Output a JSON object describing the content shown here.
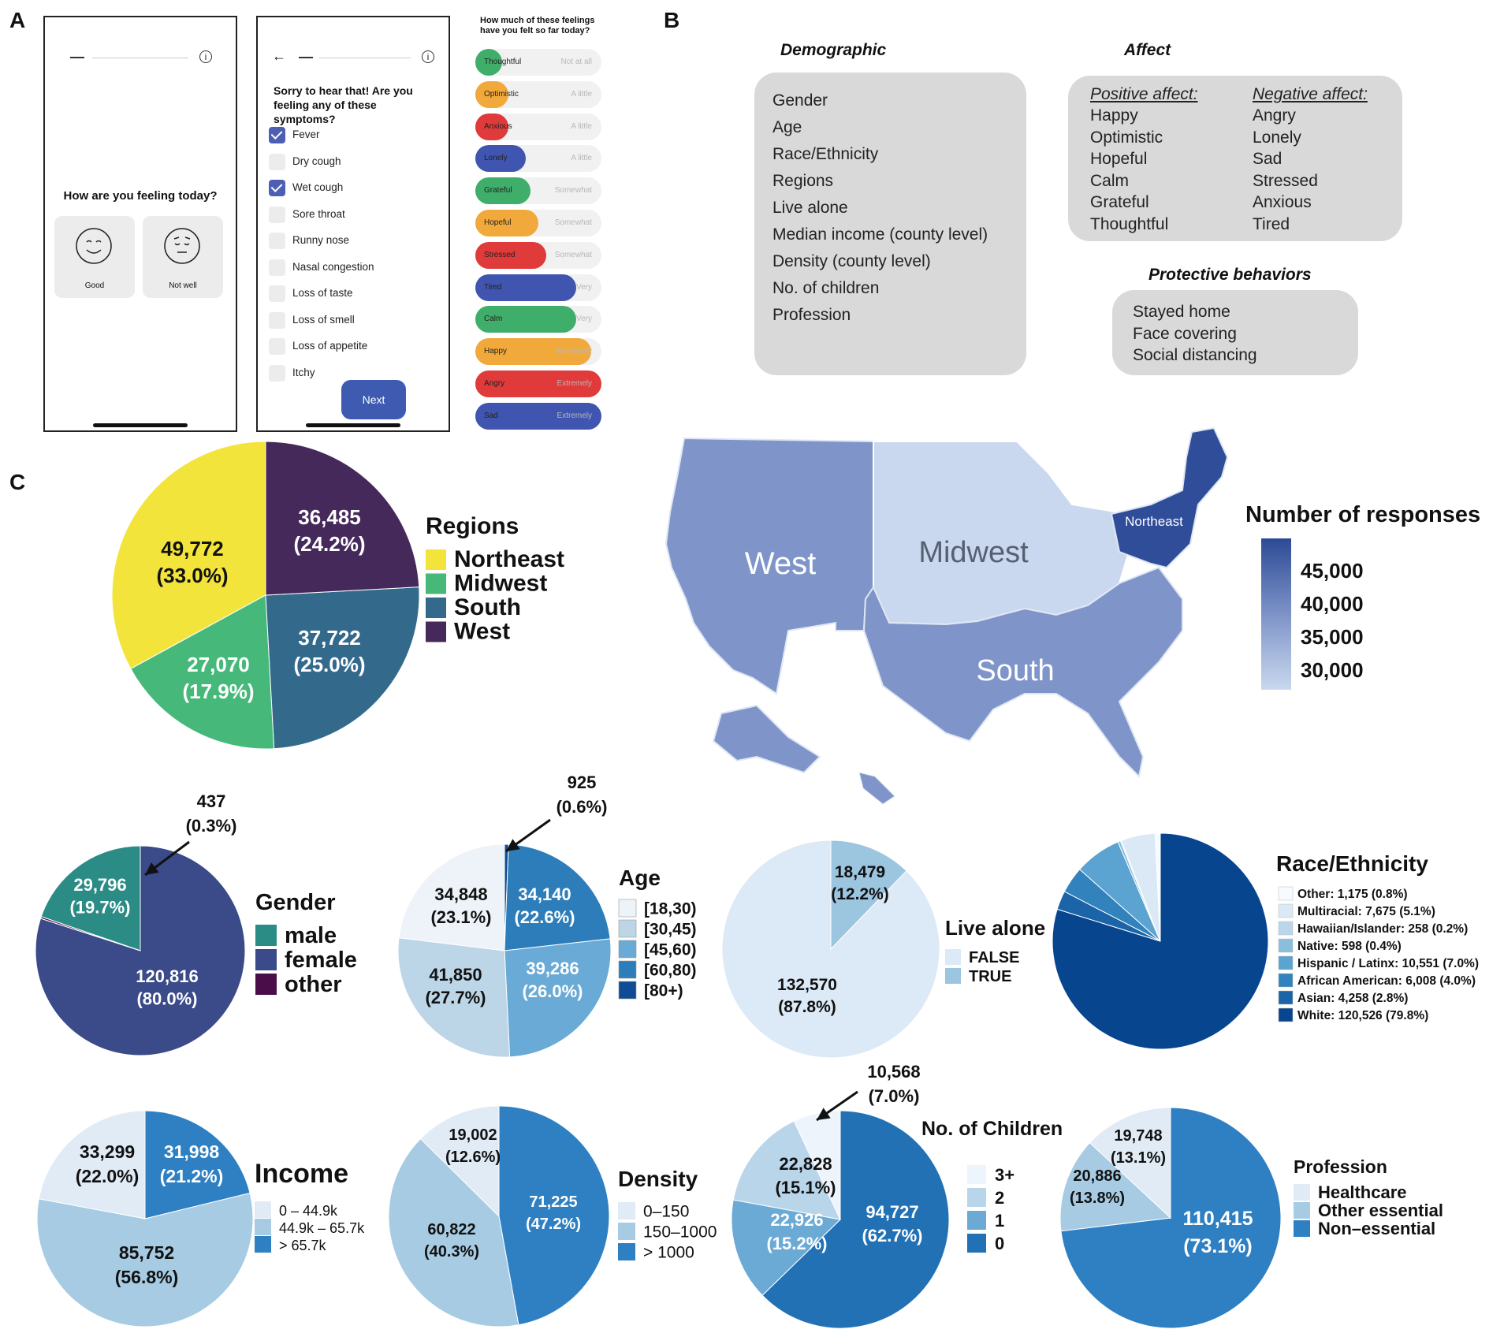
{
  "panels": {
    "a": "A",
    "b": "B",
    "c": "C"
  },
  "app": {
    "screen1": {
      "question": "How are you feeling today?",
      "good_label": "Good",
      "notwell_label": "Not well"
    },
    "screen2": {
      "question": "Sorry to hear that! Are you feeling any of these symptoms?",
      "symptoms": [
        {
          "label": "Fever",
          "checked": true
        },
        {
          "label": "Dry cough",
          "checked": false
        },
        {
          "label": "Wet cough",
          "checked": true
        },
        {
          "label": "Sore throat",
          "checked": false
        },
        {
          "label": "Runny nose",
          "checked": false
        },
        {
          "label": "Nasal congestion",
          "checked": false
        },
        {
          "label": "Loss of taste",
          "checked": false
        },
        {
          "label": "Loss of smell",
          "checked": false
        },
        {
          "label": "Loss of appetite",
          "checked": false
        },
        {
          "label": "Itchy",
          "checked": false
        }
      ],
      "next_label": "Next"
    },
    "screen3": {
      "question": "How much of these feelings have you felt so far today?",
      "feelings": [
        {
          "name": "Thoughtful",
          "level": "Not at all",
          "fill": 0.2,
          "color": "#3fae6a"
        },
        {
          "name": "Optimistic",
          "level": "A little",
          "fill": 0.26,
          "color": "#f2a93b"
        },
        {
          "name": "Anxious",
          "level": "A little",
          "fill": 0.26,
          "color": "#e03a3a"
        },
        {
          "name": "Lonely",
          "level": "A little",
          "fill": 0.4,
          "color": "#3f55b0"
        },
        {
          "name": "Grateful",
          "level": "Somewhat",
          "fill": 0.44,
          "color": "#3fae6a"
        },
        {
          "name": "Hopeful",
          "level": "Somewhat",
          "fill": 0.5,
          "color": "#f2a93b"
        },
        {
          "name": "Stressed",
          "level": "Somewhat",
          "fill": 0.56,
          "color": "#e03a3a"
        },
        {
          "name": "Tired",
          "level": "Very",
          "fill": 0.8,
          "color": "#3f55b0"
        },
        {
          "name": "Calm",
          "level": "Very",
          "fill": 0.8,
          "color": "#3fae6a"
        },
        {
          "name": "Happy",
          "level": "Extremely",
          "fill": 0.92,
          "color": "#f2a93b"
        },
        {
          "name": "Angry",
          "level": "Extremely",
          "fill": 1.0,
          "color": "#e03a3a"
        },
        {
          "name": "Sad",
          "level": "Extremely",
          "fill": 1.0,
          "color": "#3f55b0"
        }
      ]
    }
  },
  "variables": {
    "demographic_title": "Demographic",
    "demographic": [
      "Gender",
      "Age",
      "Race/Ethnicity",
      "Regions",
      "Live alone",
      "Median income (county level)",
      "Density (county level)",
      "No. of children",
      "Profession"
    ],
    "affect_title": "Affect",
    "positive_title": "Positive affect:",
    "positive": [
      "Happy",
      "Optimistic",
      "Hopeful",
      "Calm",
      "Grateful",
      "Thoughtful"
    ],
    "negative_title": "Negative affect:",
    "negative": [
      "Angry",
      "Lonely",
      "Sad",
      "Stressed",
      "Anxious",
      "Tired"
    ],
    "protective_title": "Protective behaviors",
    "protective": [
      "Stayed home",
      "Face covering",
      "Social distancing"
    ]
  },
  "chart_data": [
    {
      "type": "pie",
      "title": "Regions",
      "slices": [
        {
          "label": "Northeast",
          "value": 49772,
          "value_text": "49,772",
          "pct": "(33.0%)",
          "color": "#f3e43b"
        },
        {
          "label": "Midwest",
          "value": 27070,
          "value_text": "27,070",
          "pct": "(17.9%)",
          "color": "#46b97a"
        },
        {
          "label": "South",
          "value": 37722,
          "value_text": "37,722",
          "pct": "(25.0%)",
          "color": "#336a8c"
        },
        {
          "label": "West",
          "value": 36485,
          "value_text": "36,485",
          "pct": "(24.2%)",
          "color": "#45295a"
        }
      ]
    },
    {
      "type": "choropleth",
      "title": "Number of responses",
      "scale_ticks": [
        "45,000",
        "40,000",
        "35,000",
        "30,000"
      ],
      "regions": [
        {
          "label": "West",
          "value": 36485
        },
        {
          "label": "Midwest",
          "value": 27070
        },
        {
          "label": "South",
          "value": 37722
        },
        {
          "label": "Northeast",
          "value": 49772
        }
      ]
    },
    {
      "type": "pie",
      "title": "Gender",
      "slices": [
        {
          "label": "male",
          "value": 29796,
          "value_text": "29,796",
          "pct": "(19.7%)",
          "color": "#2b8c85"
        },
        {
          "label": "female",
          "value": 120816,
          "value_text": "120,816",
          "pct": "(80.0%)",
          "color": "#3b4a88"
        },
        {
          "label": "other",
          "value": 437,
          "value_text": "437",
          "pct": "(0.3%)",
          "color": "#4a0d4a"
        }
      ]
    },
    {
      "type": "pie",
      "title": "Age",
      "slices": [
        {
          "label": "[18,30)",
          "value": 34848,
          "value_text": "34,848",
          "pct": "(23.1%)",
          "color": "#eef3fa"
        },
        {
          "label": "[30,45)",
          "value": 41850,
          "value_text": "41,850",
          "pct": "(27.7%)",
          "color": "#bcd5e7"
        },
        {
          "label": "[45,60)",
          "value": 39286,
          "value_text": "39,286",
          "pct": "(26.0%)",
          "color": "#69aad6"
        },
        {
          "label": "[60,80)",
          "value": 34140,
          "value_text": "34,140",
          "pct": "(22.6%)",
          "color": "#2e7dbb"
        },
        {
          "label": "[80+)",
          "value": 925,
          "value_text": "925",
          "pct": "(0.6%)",
          "color": "#0f4c95"
        }
      ]
    },
    {
      "type": "pie",
      "title": "Live alone",
      "slices": [
        {
          "label": "FALSE",
          "value": 132570,
          "value_text": "132,570",
          "pct": "(87.8%)",
          "color": "#dce9f6"
        },
        {
          "label": "TRUE",
          "value": 18479,
          "value_text": "18,479",
          "pct": "(12.2%)",
          "color": "#9cc5e0"
        }
      ]
    },
    {
      "type": "pie",
      "title": "Race/Ethnicity",
      "slices": [
        {
          "label": "Other: 1,175 (0.8%)",
          "value": 1175,
          "color": "#f7fbff"
        },
        {
          "label": "Multiracial: 7,675 (5.1%)",
          "value": 7675,
          "color": "#dbe9f6"
        },
        {
          "label": "Hawaiian/Islander: 258 (0.2%)",
          "value": 258,
          "color": "#bad6eb"
        },
        {
          "label": "Native: 598 (0.4%)",
          "value": 598,
          "color": "#89bedc"
        },
        {
          "label": "Hispanic / Latinx: 10,551 (7.0%)",
          "value": 10551,
          "color": "#5ba3d0"
        },
        {
          "label": "African American: 6,008 (4.0%)",
          "value": 6008,
          "color": "#3182bd"
        },
        {
          "label": "Asian: 4,258 (2.8%)",
          "value": 4258,
          "color": "#1c64a8"
        },
        {
          "label": "White: 120,526 (79.8%)",
          "value": 120526,
          "color": "#08458f"
        }
      ]
    },
    {
      "type": "pie",
      "title": "Income",
      "slices": [
        {
          "label": "0 – 44.9k",
          "value": 33299,
          "value_text": "33,299",
          "pct": "(22.0%)",
          "color": "#e0ebf6"
        },
        {
          "label": "44.9k – 65.7k",
          "value": 85752,
          "value_text": "85,752",
          "pct": "(56.8%)",
          "color": "#a6cbe3"
        },
        {
          "label": "> 65.7k",
          "value": 31998,
          "value_text": "31,998",
          "pct": "(21.2%)",
          "color": "#2f80c2"
        }
      ]
    },
    {
      "type": "pie",
      "title": "Density",
      "slices": [
        {
          "label": "0–150",
          "value": 19002,
          "value_text": "19,002",
          "pct": "(12.6%)",
          "color": "#e0ebf6"
        },
        {
          "label": "150–1000",
          "value": 60822,
          "value_text": "60,822",
          "pct": "(40.3%)",
          "color": "#a6cbe3"
        },
        {
          "label": "> 1000",
          "value": 71225,
          "value_text": "71,225",
          "pct": "(47.2%)",
          "color": "#2f80c2"
        }
      ]
    },
    {
      "type": "pie",
      "title": "No. of Children",
      "slices": [
        {
          "label": "3+",
          "value": 10568,
          "value_text": "10,568",
          "pct": "(7.0%)",
          "color": "#eef4fb"
        },
        {
          "label": "2",
          "value": 22828,
          "value_text": "22,828",
          "pct": "(15.1%)",
          "color": "#b9d5ea"
        },
        {
          "label": "1",
          "value": 22926,
          "value_text": "22,926",
          "pct": "(15.2%)",
          "color": "#6caad6"
        },
        {
          "label": "0",
          "value": 94727,
          "value_text": "94,727",
          "pct": "(62.7%)",
          "color": "#2271b5"
        }
      ]
    },
    {
      "type": "pie",
      "title": "Profession",
      "slices": [
        {
          "label": "Healthcare",
          "value": 19748,
          "value_text": "19,748",
          "pct": "(13.1%)",
          "color": "#e0ebf6"
        },
        {
          "label": "Other essential",
          "value": 20886,
          "value_text": "20,886",
          "pct": "(13.8%)",
          "color": "#a6cbe3"
        },
        {
          "label": "Non–essential",
          "value": 110415,
          "value_text": "110,415",
          "pct": "(73.1%)",
          "color": "#2f80c2"
        }
      ]
    }
  ]
}
